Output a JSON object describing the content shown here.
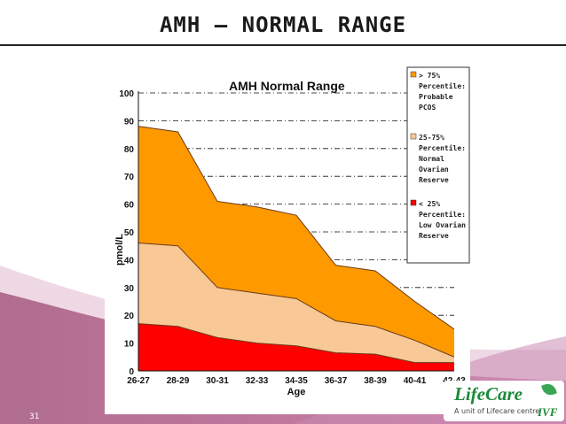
{
  "slide": {
    "title": "AMH – NORMAL RANGE",
    "slide_number": "31"
  },
  "logo": {
    "name": "LifeCare",
    "tagline": "A unit of Lifecare centre",
    "suffix": "IVF"
  },
  "chart_data": {
    "type": "area",
    "title": "AMH Normal Range",
    "xlabel": "Age",
    "ylabel": "pmol/L",
    "ylim": [
      0,
      100
    ],
    "yticks": [
      0,
      10,
      20,
      30,
      40,
      50,
      60,
      70,
      80,
      90,
      100
    ],
    "categories": [
      "26-27",
      "28-29",
      "30-31",
      "32-33",
      "34-35",
      "36-37",
      "38-39",
      "40-41",
      "42-43"
    ],
    "series": [
      {
        "name": "> 75% Percentile: Probable PCOS",
        "color": "#ff9900",
        "values": [
          88,
          86,
          61,
          59,
          56,
          38,
          36,
          25,
          15
        ]
      },
      {
        "name": "25-75% Percentile: Normal Ovarian Reserve",
        "color": "#f8c896",
        "values": [
          46,
          45,
          30,
          28,
          26,
          18,
          16,
          11,
          5
        ]
      },
      {
        "name": "< 25% Percentile: Low Ovarian Reserve",
        "color": "#ff0000",
        "values": [
          17,
          16,
          12,
          10,
          9,
          6.5,
          6,
          3,
          3
        ]
      }
    ],
    "legend": [
      {
        "lines": [
          "> 75%",
          "Percentile:",
          "Probable",
          "PCOS"
        ],
        "color": "#ff9900"
      },
      {
        "lines": [
          "25-75%",
          "Percentile:",
          "Normal",
          "Ovarian",
          "Reserve"
        ],
        "color": "#f8c896"
      },
      {
        "lines": [
          "< 25%",
          "Percentile:",
          "Low Ovarian",
          "Reserve"
        ],
        "color": "#ff0000"
      }
    ],
    "legend_position": "top-right",
    "grid": true
  }
}
